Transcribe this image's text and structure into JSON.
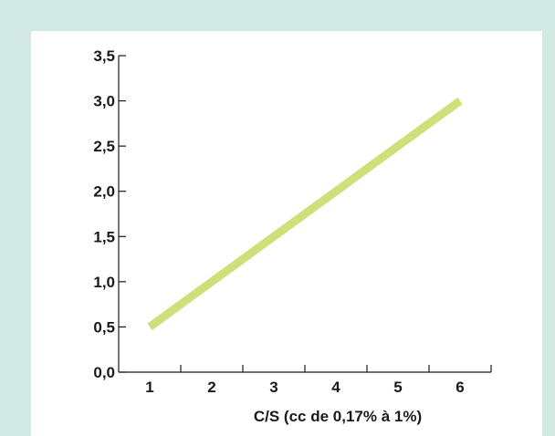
{
  "chart_data": {
    "type": "line",
    "title": "",
    "xlabel": "C/S (cc de 0,17% à 1%)",
    "ylabel": "",
    "x_ticks": [
      "1",
      "2",
      "3",
      "4",
      "5",
      "6"
    ],
    "y_ticks": [
      "0,0",
      "0,5",
      "1,0",
      "1,5",
      "2,0",
      "2,5",
      "3,0",
      "3,5"
    ],
    "xlim": [
      0.5,
      6.5
    ],
    "ylim": [
      0,
      3.5
    ],
    "grid": false,
    "series": [
      {
        "x": [
          1,
          6
        ],
        "y": [
          0.5,
          3.0
        ],
        "color": "#cfe07a"
      }
    ]
  },
  "colors": {
    "background": "#d2e9e3",
    "panel": "#ffffff",
    "axis": "#1a1a1a",
    "line": "#cfe07a"
  }
}
